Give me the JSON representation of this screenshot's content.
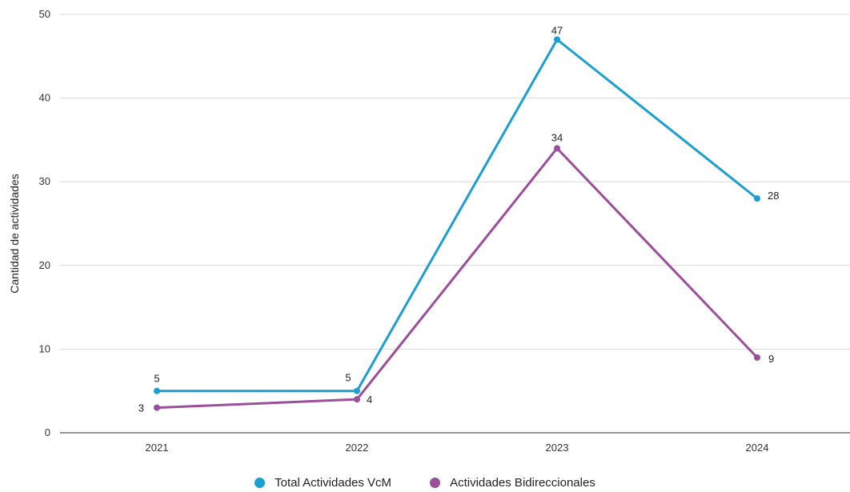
{
  "chart_data": {
    "type": "line",
    "title": "",
    "xlabel": "",
    "ylabel": "Cantidad de actividades",
    "categories": [
      "2021",
      "2022",
      "2023",
      "2024"
    ],
    "ylim": [
      0,
      50
    ],
    "yticks": [
      0,
      10,
      20,
      30,
      40,
      50
    ],
    "grid": true,
    "legend_position": "bottom",
    "series": [
      {
        "name": "Total Actividades VcM",
        "color": "#1a9fd0",
        "values": [
          5,
          5,
          47,
          28
        ]
      },
      {
        "name": "Actividades Bidireccionales",
        "color": "#9b4f9b",
        "values": [
          3,
          4,
          34,
          9
        ]
      }
    ]
  }
}
